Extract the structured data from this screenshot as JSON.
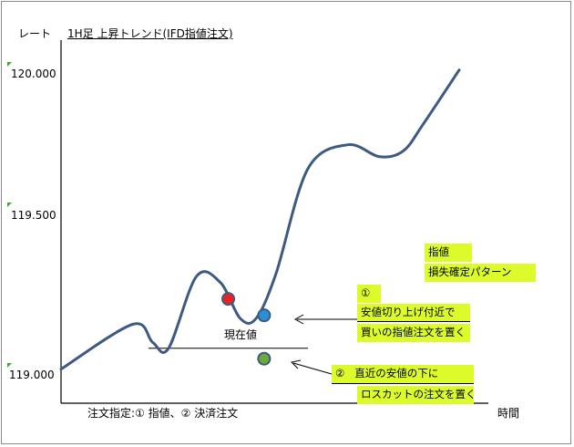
{
  "chart_data": {
    "type": "line",
    "title": "1H足 上昇トレンド(IFD指値注文)",
    "ylabel": "レート",
    "xlabel": "時間",
    "ylim": [
      119.0,
      120.0
    ],
    "yticks": [
      "120.000",
      "119.500",
      "119.000"
    ],
    "ytick_values": [
      120.0,
      119.5,
      119.0
    ],
    "legend": "none",
    "grid": false,
    "price_curve": {
      "color": "#3d5a80",
      "x": [
        0.0,
        0.18,
        0.23,
        0.27,
        0.34,
        0.4,
        0.45,
        0.49,
        0.54,
        0.62,
        0.72,
        0.8,
        0.86,
        0.91,
        1.0
      ],
      "y": [
        119.01,
        119.16,
        119.1,
        119.08,
        119.32,
        119.3,
        119.18,
        119.18,
        119.33,
        119.68,
        119.76,
        119.72,
        119.74,
        119.83,
        120.01
      ]
    },
    "lines": {
      "current_price_line_value": 119.08,
      "current_price_label": "現在値"
    },
    "markers": [
      {
        "name": "red",
        "color": "#ee2222",
        "x": 0.42,
        "y": 119.245
      },
      {
        "name": "blue",
        "color": "#2b8fd8",
        "x": 0.51,
        "y": 119.19
      },
      {
        "name": "green",
        "color": "#6aab3c",
        "x": 0.51,
        "y": 119.045
      }
    ]
  },
  "annotations": {
    "order_type_label": "注文指定:① 指値、② 決済注文",
    "pattern_note": {
      "line1": "指値",
      "line2": "損失確定パターン"
    },
    "note1": {
      "num": "①",
      "line1": "安値切り上げ付近で",
      "line2": "買いの指値注文を置く"
    },
    "note2": {
      "num": "②",
      "line1": "直近の安値の下に",
      "line2": "ロスカットの注文を置く"
    }
  },
  "colors": {
    "highlight": "#ddfb2a",
    "axis": "#000000",
    "tick_marker": "#3aa63a"
  }
}
